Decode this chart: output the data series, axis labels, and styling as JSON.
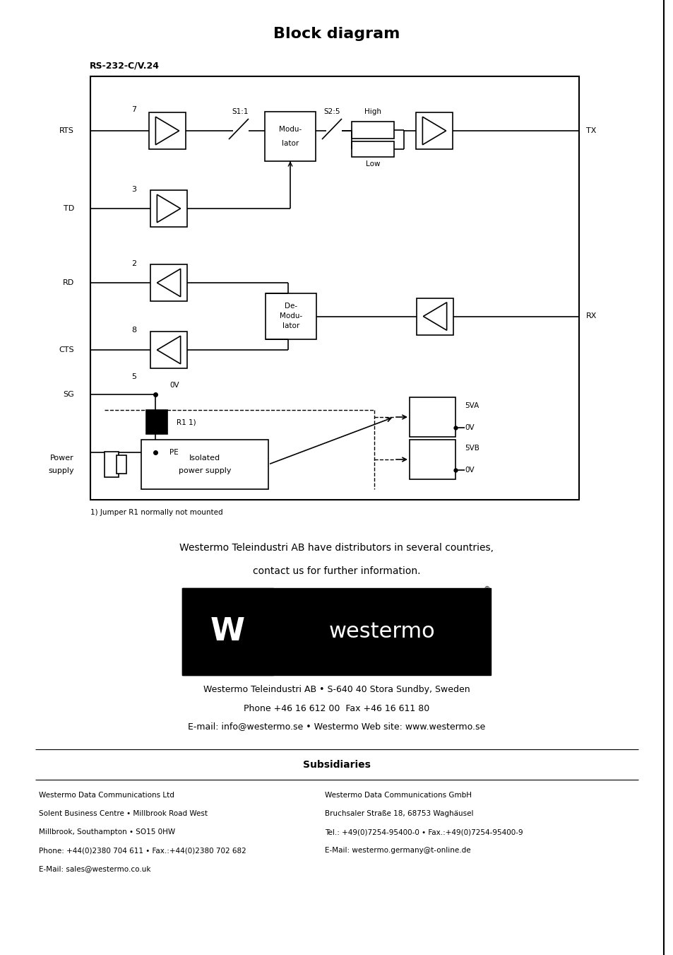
{
  "title": "Block diagram",
  "subtitle": "RS-232-C/V.24",
  "bg_color": "#ffffff",
  "title_fontsize": 16,
  "footer_line1": "Westermo Teleindustri AB have distributors in several countries,",
  "footer_line2": "contact us for further information.",
  "footer_line3": "Westermo Teleindustri AB • S-640 40 Stora Sundby, Sweden",
  "footer_line4": "Phone +46 16 612 00  Fax +46 16 611 80",
  "footer_line5": "E-mail: info@westermo.se • Westermo Web site: www.westermo.se",
  "subsidiaries_title": "Subsidiaries",
  "sub_left": [
    "Westermo Data Communications Ltd",
    "Solent Business Centre • Millbrook Road West",
    "Millbrook, Southampton • SO15 0HW",
    "Phone: +44(0)2380 704 611 • Fax.:+44(0)2380 702 682",
    "E-Mail: sales@westermo.co.uk"
  ],
  "sub_right": [
    "Westermo Data Communications GmbH",
    "Bruchsaler Straße 18, 68753 Waghäusel",
    "Tel.: +49(0)7254-95400-0 • Fax.:+49(0)7254-95400-9",
    "E-Mail: westermo.germany@t-online.de"
  ],
  "footnote": "1) Jumper R1 normally not mounted"
}
